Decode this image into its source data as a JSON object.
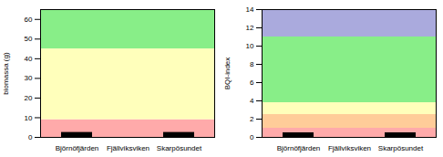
{
  "chart_data": [
    {
      "type": "bar",
      "categories": [
        "Björnöfjärden",
        "Fjällviksviken",
        "Skarpösundet"
      ],
      "values": [
        2.5,
        null,
        2.5
      ],
      "color": "black",
      "ylabel": "biomassa (g)",
      "ylim": [
        0,
        65
      ],
      "yticks": [
        0,
        10,
        20,
        30,
        40,
        50,
        60
      ],
      "bands": [
        {
          "ymin": 0,
          "ymax": 9,
          "color": "#ffaaaa"
        },
        {
          "ymin": 9,
          "ymax": 45,
          "color": "#ffffbb"
        },
        {
          "ymin": 45,
          "ymax": 65,
          "color": "#88ee88"
        }
      ]
    },
    {
      "type": "bar",
      "categories": [
        "Björnöfjärden",
        "Fjällviksviken",
        "Skarpösundet"
      ],
      "values": [
        0.5,
        null,
        0.5
      ],
      "color": "black",
      "ylabel": "BQI-index",
      "ylim": [
        0,
        14
      ],
      "yticks": [
        0,
        2,
        4,
        6,
        8,
        10,
        12,
        14
      ],
      "bands": [
        {
          "ymin": 0,
          "ymax": 1,
          "color": "#ffaaaa"
        },
        {
          "ymin": 1,
          "ymax": 2.5,
          "color": "#ffcc99"
        },
        {
          "ymin": 2.5,
          "ymax": 3.8,
          "color": "#ffffbb"
        },
        {
          "ymin": 3.8,
          "ymax": 11,
          "color": "#88ee88"
        },
        {
          "ymin": 11,
          "ymax": 14,
          "color": "#aaaadd"
        }
      ]
    }
  ]
}
